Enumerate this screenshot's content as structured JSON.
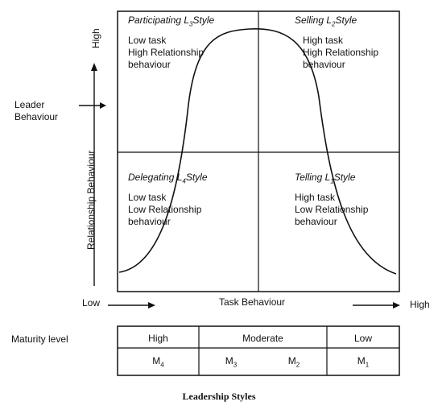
{
  "y_axis": {
    "high": "High",
    "title": "Relationship Behaviour",
    "leader_line1": "Leader",
    "leader_line2": "Behaviour"
  },
  "x_axis": {
    "low": "Low",
    "title": "Task Behaviour",
    "high": "High"
  },
  "quadrants": {
    "participating": {
      "title_pre": "Participating L",
      "sub": "3",
      "title_post": "Style",
      "lines": [
        "Low task",
        "High Relationship",
        "behaviour"
      ]
    },
    "selling": {
      "title_pre": "Selling L",
      "sub": "2",
      "title_post": "Style",
      "lines": [
        "High task",
        "High Relationship",
        "behaviour"
      ]
    },
    "delegating": {
      "title_pre": "Delegating L",
      "sub": "4",
      "title_post": "Style",
      "lines": [
        "Low task",
        "Low Relationship",
        "behaviour"
      ]
    },
    "telling": {
      "title_pre": "Telling L",
      "sub": "1",
      "title_post": "Style",
      "lines": [
        "High task",
        "Low Relationship",
        "behaviour"
      ]
    }
  },
  "maturity": {
    "label": "Maturity level",
    "levels": [
      "High",
      "Moderate",
      "Low"
    ],
    "codes": [
      {
        "base": "M",
        "sub": "4"
      },
      {
        "base": "M",
        "sub": "3"
      },
      {
        "base": "M",
        "sub": "2"
      },
      {
        "base": "M",
        "sub": "1"
      }
    ]
  },
  "caption": "Leadership Styles"
}
